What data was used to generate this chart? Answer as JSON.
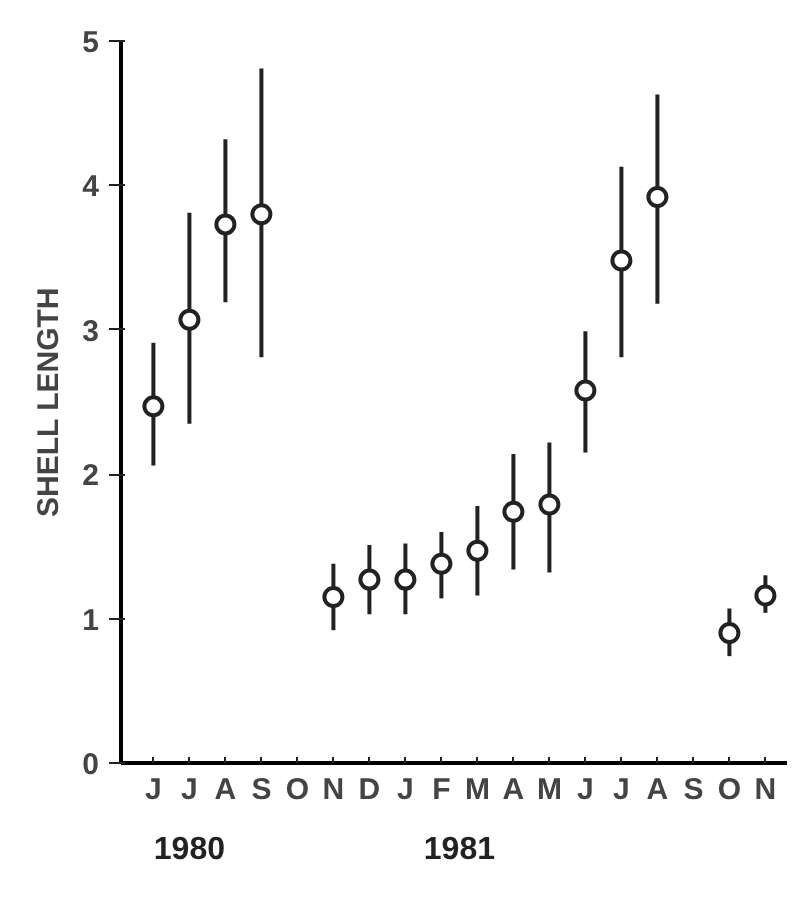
{
  "chart_data": {
    "type": "scatter",
    "ylabel": "SHELL LENGTH",
    "categories": [
      "J",
      "J",
      "A",
      "S",
      "O",
      "N",
      "D",
      "J",
      "F",
      "M",
      "A",
      "M",
      "J",
      "J",
      "A",
      "S",
      "O",
      "N"
    ],
    "values": [
      2.47,
      3.07,
      3.73,
      3.8,
      null,
      1.15,
      1.27,
      1.27,
      1.38,
      1.47,
      1.74,
      1.79,
      2.58,
      3.48,
      3.92,
      null,
      0.9,
      1.16
    ],
    "errors": [
      [
        2.06,
        2.91
      ],
      [
        2.35,
        3.81
      ],
      [
        3.19,
        4.32
      ],
      [
        2.81,
        4.81
      ],
      null,
      [
        0.92,
        1.38
      ],
      [
        1.03,
        1.51
      ],
      [
        1.03,
        1.52
      ],
      [
        1.14,
        1.6
      ],
      [
        1.16,
        1.78
      ],
      [
        1.34,
        2.14
      ],
      [
        1.32,
        2.22
      ],
      [
        2.15,
        2.99
      ],
      [
        2.81,
        4.13
      ],
      [
        3.18,
        4.63
      ],
      null,
      [
        0.74,
        1.07
      ],
      [
        1.04,
        1.3
      ]
    ],
    "color": "#222222",
    "marker": "circle",
    "ylim": [
      0,
      5
    ],
    "yticks": [
      0,
      1,
      2,
      3,
      4,
      5
    ],
    "grid": false,
    "annotations": [
      "1980",
      "1981"
    ]
  }
}
